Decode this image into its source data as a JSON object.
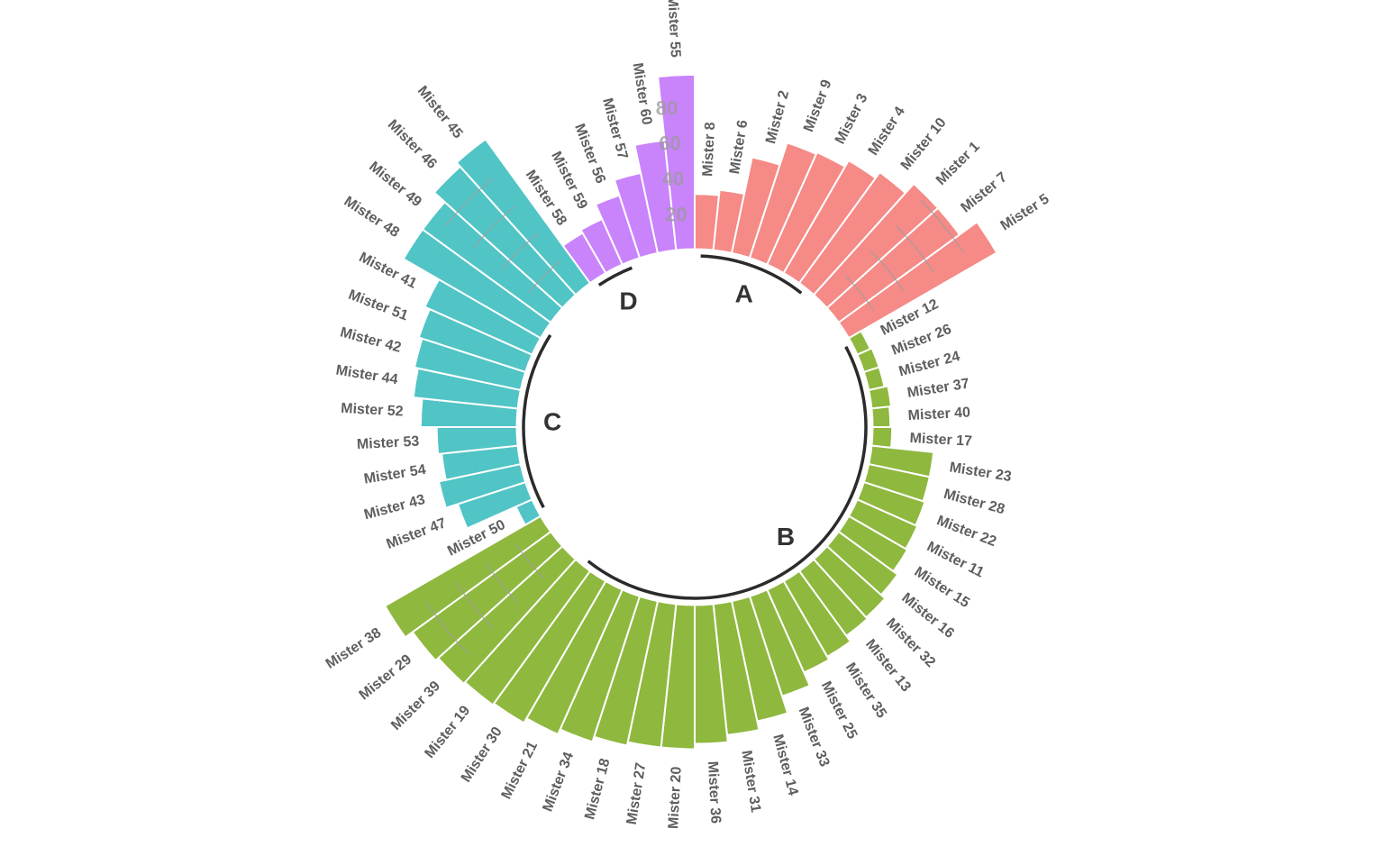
{
  "chart_data": {
    "type": "bar",
    "coordinate_system": "polar",
    "y_ticks": [
      20,
      40,
      60,
      80
    ],
    "grid": "partial arcs between groups",
    "legend": "none",
    "groups": [
      {
        "name": "A",
        "color": "#F58A86",
        "bars": [
          {
            "label": "Mister 8",
            "value": 31
          },
          {
            "label": "Mister 6",
            "value": 34
          },
          {
            "label": "Mister 2",
            "value": 55
          },
          {
            "label": "Mister 9",
            "value": 68
          },
          {
            "label": "Mister 3",
            "value": 69
          },
          {
            "label": "Mister 4",
            "value": 73
          },
          {
            "label": "Mister 10",
            "value": 77
          },
          {
            "label": "Mister 1",
            "value": 84
          },
          {
            "label": "Mister 7",
            "value": 84
          },
          {
            "label": "Mister 5",
            "value": 96
          }
        ]
      },
      {
        "name": "B",
        "color": "#8FB83F",
        "bars": [
          {
            "label": "Mister 12",
            "value": 8
          },
          {
            "label": "Mister 26",
            "value": 9
          },
          {
            "label": "Mister 24",
            "value": 9
          },
          {
            "label": "Mister 37",
            "value": 11
          },
          {
            "label": "Mister 40",
            "value": 10
          },
          {
            "label": "Mister 17",
            "value": 11
          },
          {
            "label": "Mister 23",
            "value": 35
          },
          {
            "label": "Mister 28",
            "value": 35
          },
          {
            "label": "Mister 22",
            "value": 36
          },
          {
            "label": "Mister 11",
            "value": 37
          },
          {
            "label": "Mister 15",
            "value": 38
          },
          {
            "label": "Mister 16",
            "value": 41
          },
          {
            "label": "Mister 32",
            "value": 44
          },
          {
            "label": "Mister 13",
            "value": 45
          },
          {
            "label": "Mister 35",
            "value": 49
          },
          {
            "label": "Mister 25",
            "value": 51
          },
          {
            "label": "Mister 33",
            "value": 59
          },
          {
            "label": "Mister 14",
            "value": 69
          },
          {
            "label": "Mister 31",
            "value": 74
          },
          {
            "label": "Mister 36",
            "value": 78
          },
          {
            "label": "Mister 20",
            "value": 81
          },
          {
            "label": "Mister 27",
            "value": 81
          },
          {
            "label": "Mister 18",
            "value": 83
          },
          {
            "label": "Mister 34",
            "value": 86
          },
          {
            "label": "Mister 21",
            "value": 89
          },
          {
            "label": "Mister 30",
            "value": 92
          },
          {
            "label": "Mister 19",
            "value": 93
          },
          {
            "label": "Mister 39",
            "value": 94
          },
          {
            "label": "Mister 29",
            "value": 96
          },
          {
            "label": "Mister 38",
            "value": 101
          }
        ]
      },
      {
        "name": "C",
        "color": "#51C4C6",
        "bars": [
          {
            "label": "Mister 50",
            "value": 10
          },
          {
            "label": "Mister 47",
            "value": 40
          },
          {
            "label": "Mister 43",
            "value": 47
          },
          {
            "label": "Mister 54",
            "value": 43
          },
          {
            "label": "Mister 53",
            "value": 45
          },
          {
            "label": "Mister 52",
            "value": 54
          },
          {
            "label": "Mister 44",
            "value": 59
          },
          {
            "label": "Mister 42",
            "value": 61
          },
          {
            "label": "Mister 51",
            "value": 63
          },
          {
            "label": "Mister 41",
            "value": 66
          },
          {
            "label": "Mister 48",
            "value": 89
          },
          {
            "label": "Mister 49",
            "value": 89
          },
          {
            "label": "Mister 46",
            "value": 97
          },
          {
            "label": "Mister 45",
            "value": 100
          }
        ]
      },
      {
        "name": "D",
        "color": "#C983FB",
        "bars": [
          {
            "label": "Mister 58",
            "value": 26
          },
          {
            "label": "Mister 59",
            "value": 28
          },
          {
            "label": "Mister 56",
            "value": 37
          },
          {
            "label": "Mister 57",
            "value": 46
          },
          {
            "label": "Mister 60",
            "value": 62
          },
          {
            "label": "Mister 55",
            "value": 98
          }
        ]
      }
    ]
  }
}
